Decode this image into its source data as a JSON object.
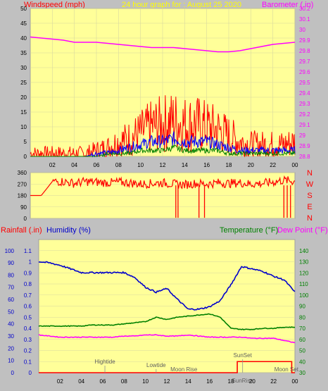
{
  "header": {
    "left_title": "Windspeed (mph)",
    "center_title": "24 hour graph for : August 25 2020",
    "right_title": "Barometer (.in)"
  },
  "legend_mid": {
    "rainfall": "Rainfall (.in)",
    "humidity": "Humidity (%)",
    "temperature": "Temperature (°F)",
    "dewpoint": "Dew Point (°F)"
  },
  "direction_letters": [
    "N",
    "W",
    "S",
    "E",
    "N"
  ],
  "colors": {
    "plot_bg": "#ffff99",
    "frame_bg": "#c0c0c0",
    "windspeed_title": "#ff0000",
    "barometer": "#ff00ff",
    "center_title": "#ffff00",
    "wind_max": "#ff0000",
    "wind_avg": "#0000ff",
    "wind_low": "#008000",
    "direction": "#ff0000",
    "humidity": "#0000cc",
    "temperature": "#008000",
    "dewpoint": "#ff00ff",
    "rainfall": "#ff0000",
    "rain_axis": "#0000cc",
    "temp_axis": "#008000"
  },
  "chart_data": [
    {
      "id": "wind",
      "type": "line",
      "xlabel": "",
      "ylabel": "Windspeed (mph)",
      "x_ticks": [
        "02",
        "04",
        "06",
        "08",
        "10",
        "12",
        "14",
        "16",
        "18",
        "20",
        "22",
        "00"
      ],
      "ylim": [
        0,
        50
      ],
      "y_ticks": [
        0,
        5,
        10,
        15,
        20,
        25,
        30,
        35,
        40,
        45,
        50
      ],
      "y2lim": [
        28.8,
        30.2
      ],
      "y2_ticks": [
        "28.8",
        "28.9",
        "29",
        "29.1",
        "29.2",
        "29.3",
        "29.4",
        "29.5",
        "29.6",
        "29.7",
        "29.8",
        "29.9",
        "30",
        "30.1",
        "30.2"
      ],
      "x_hours": [
        0,
        1,
        2,
        3,
        4,
        5,
        6,
        7,
        8,
        9,
        10,
        11,
        12,
        13,
        14,
        15,
        16,
        17,
        18,
        19,
        20,
        21,
        22,
        23,
        24
      ],
      "series": [
        {
          "name": "Barometer (.in)",
          "axis": "right",
          "values": [
            29.93,
            29.92,
            29.91,
            29.9,
            29.88,
            29.88,
            29.88,
            29.87,
            29.86,
            29.85,
            29.84,
            29.83,
            29.83,
            29.83,
            29.82,
            29.81,
            29.8,
            29.79,
            29.79,
            29.8,
            29.82,
            29.84,
            29.86,
            29.87,
            29.88
          ]
        },
        {
          "name": "Wind gust",
          "axis": "left",
          "values": [
            1,
            1,
            1,
            1,
            1,
            1,
            2,
            3,
            5,
            6,
            8,
            10,
            11,
            12,
            11,
            11,
            10,
            9,
            7,
            5,
            4,
            4,
            4,
            4,
            5
          ]
        },
        {
          "name": "Wind avg",
          "axis": "left",
          "values": [
            0,
            0,
            0,
            0,
            0,
            0,
            1,
            1,
            2,
            3,
            4,
            5,
            5,
            6,
            5,
            5,
            5,
            4,
            3,
            2,
            2,
            2,
            2,
            2,
            2
          ]
        },
        {
          "name": "Wind low",
          "axis": "left",
          "values": [
            0,
            0,
            0,
            0,
            0,
            0,
            0,
            1,
            1,
            1,
            2,
            2,
            2,
            3,
            2,
            2,
            2,
            2,
            1,
            1,
            1,
            1,
            1,
            1,
            1
          ]
        }
      ]
    },
    {
      "id": "direction",
      "type": "line",
      "ylim": [
        0,
        360
      ],
      "y_ticks": [
        0,
        90,
        180,
        270,
        360
      ],
      "x_hours": [
        0,
        1,
        2,
        3,
        4,
        5,
        6,
        7,
        8,
        9,
        10,
        11,
        12,
        13,
        14,
        15,
        16,
        17,
        18,
        19,
        20,
        21,
        22,
        23,
        24
      ],
      "values": [
        180,
        180,
        290,
        290,
        275,
        290,
        285,
        280,
        285,
        280,
        270,
        275,
        280,
        270,
        265,
        275,
        270,
        280,
        275,
        280,
        270,
        275,
        285,
        300,
        290
      ]
    },
    {
      "id": "temp",
      "type": "line",
      "ylim": [
        0,
        1.2
      ],
      "y_ticks": [
        "0",
        "0.1",
        "0.2",
        "0.3",
        "0.4",
        "0.5",
        "0.6",
        "0.7",
        "0.8",
        "0.9",
        "1",
        "1.1"
      ],
      "y_left_outer_ticks": [
        0,
        10,
        20,
        30,
        40,
        50,
        60,
        70,
        80,
        90,
        100
      ],
      "y2lim": [
        30,
        150
      ],
      "y2_ticks": [
        30,
        40,
        50,
        60,
        70,
        80,
        90,
        100,
        110,
        120,
        130,
        140
      ],
      "x_hours": [
        0,
        1,
        2,
        3,
        4,
        5,
        6,
        7,
        8,
        9,
        10,
        11,
        12,
        13,
        14,
        15,
        16,
        17,
        18,
        19,
        20,
        21,
        22,
        23,
        24
      ],
      "annotations": [
        "Hightide",
        "Lowtide",
        "Moon Rise",
        "SunSet",
        "SunRise",
        "Moon Set"
      ],
      "series": [
        {
          "name": "Humidity (%)",
          "axis": "left-outer",
          "values": [
            91,
            90,
            88,
            85,
            82,
            82,
            82,
            82,
            82,
            78,
            70,
            66,
            69,
            60,
            52,
            52,
            54,
            59,
            72,
            87,
            85,
            83,
            79,
            76,
            66
          ]
        },
        {
          "name": "Temperature (°F)",
          "axis": "right",
          "values": [
            72,
            72,
            72,
            72,
            72,
            73,
            73,
            73,
            74,
            75,
            76,
            80,
            78,
            80,
            81,
            82,
            83,
            80,
            70,
            69,
            69,
            70,
            70,
            71,
            71
          ]
        },
        {
          "name": "Dew Point (°F)",
          "axis": "right",
          "values": [
            64,
            63,
            62,
            62,
            62,
            62,
            62,
            62,
            63,
            63,
            64,
            64,
            63,
            63,
            64,
            63,
            62,
            62,
            62,
            62,
            61,
            61,
            61,
            59,
            57
          ]
        },
        {
          "name": "Rainfall (.in)",
          "axis": "left",
          "values": [
            0,
            0,
            0,
            0,
            0,
            0,
            0,
            0,
            0,
            0,
            0,
            0,
            0,
            0,
            0,
            0,
            0,
            0,
            0,
            0.1,
            0.1,
            0.1,
            0.1,
            0.1,
            0
          ]
        }
      ]
    }
  ]
}
